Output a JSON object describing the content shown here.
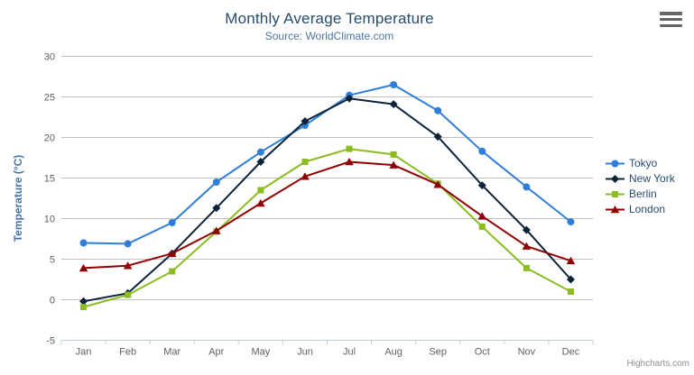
{
  "chart": {
    "title": "Monthly Average Temperature",
    "subtitle": "Source: WorldClimate.com",
    "credits": "Highcharts.com",
    "context_menu_icon": "hamburger-icon"
  },
  "colors": {
    "title": "#274b6d",
    "subtitle": "#4d759e",
    "axis_labels": "#606060",
    "y_axis_title": "#4572a7",
    "gridline": "#c0c0c0",
    "axis_line": "#c0d0e0",
    "legend_text": "#274b6d",
    "credits": "#909090"
  },
  "chart_data": {
    "type": "line",
    "title": "Monthly Average Temperature",
    "subtitle": "Source: WorldClimate.com",
    "xlabel": "",
    "ylabel": "Temperature (°C)",
    "categories": [
      "Jan",
      "Feb",
      "Mar",
      "Apr",
      "May",
      "Jun",
      "Jul",
      "Aug",
      "Sep",
      "Oct",
      "Nov",
      "Dec"
    ],
    "series": [
      {
        "name": "Tokyo",
        "color": "#2f7ed8",
        "marker": "circle",
        "values": [
          7.0,
          6.9,
          9.5,
          14.5,
          18.2,
          21.5,
          25.2,
          26.5,
          23.3,
          18.3,
          13.9,
          9.6
        ]
      },
      {
        "name": "New York",
        "color": "#0d233a",
        "marker": "diamond",
        "values": [
          -0.2,
          0.8,
          5.7,
          11.3,
          17.0,
          22.0,
          24.8,
          24.1,
          20.1,
          14.1,
          8.6,
          2.5
        ]
      },
      {
        "name": "Berlin",
        "color": "#8bbc21",
        "marker": "square",
        "values": [
          -0.9,
          0.6,
          3.5,
          8.4,
          13.5,
          17.0,
          18.6,
          17.9,
          14.3,
          9.0,
          3.9,
          1.0
        ]
      },
      {
        "name": "London",
        "color": "#910000",
        "marker": "triangle",
        "values": [
          3.9,
          4.2,
          5.7,
          8.5,
          11.9,
          15.2,
          17.0,
          16.6,
          14.2,
          10.3,
          6.6,
          4.8
        ]
      }
    ],
    "ylim": [
      -5,
      30
    ],
    "yticks": [
      -5,
      0,
      5,
      10,
      15,
      20,
      25,
      30
    ],
    "grid": true,
    "legend_position": "right"
  }
}
